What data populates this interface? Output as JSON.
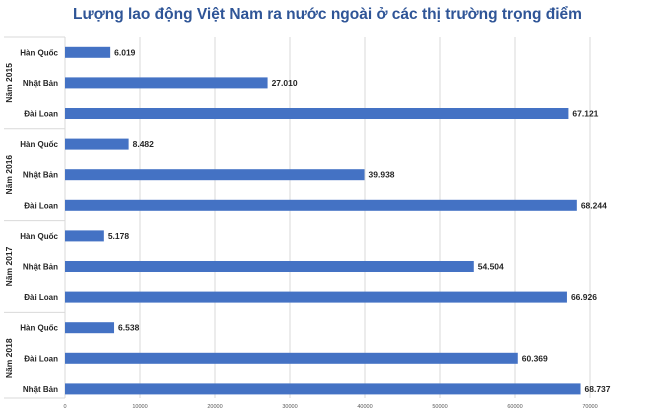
{
  "chart_data": {
    "type": "bar",
    "orientation": "horizontal",
    "title": "Lượng lao động Việt Nam ra nước ngoài ở các thị trường trọng điểm",
    "xlim": [
      0,
      70000
    ],
    "xticks": [
      "0",
      "10000",
      "20000",
      "30000",
      "40000",
      "50000",
      "60000",
      "70000"
    ],
    "grid": true,
    "bar_color": "#4472c4",
    "groups": [
      {
        "label": "Năm 2015",
        "items": [
          {
            "category": "Hàn Quốc",
            "value": 6019,
            "label": "6.019"
          },
          {
            "category": "Nhật Bản",
            "value": 27010,
            "label": "27.010"
          },
          {
            "category": "Đài Loan",
            "value": 67121,
            "label": "67.121"
          }
        ]
      },
      {
        "label": "Năm 2016",
        "items": [
          {
            "category": "Hàn Quốc",
            "value": 8482,
            "label": "8.482"
          },
          {
            "category": "Nhật Bản",
            "value": 39938,
            "label": "39.938"
          },
          {
            "category": "Đài Loan",
            "value": 68244,
            "label": "68.244"
          }
        ]
      },
      {
        "label": "Năm 2017",
        "items": [
          {
            "category": "Hàn Quốc",
            "value": 5178,
            "label": "5.178"
          },
          {
            "category": "Nhật Bản",
            "value": 54504,
            "label": "54.504"
          },
          {
            "category": "Đài Loan",
            "value": 66926,
            "label": "66.926"
          }
        ]
      },
      {
        "label": "Năm 2018",
        "items": [
          {
            "category": "Hàn Quốc",
            "value": 6538,
            "label": "6.538"
          },
          {
            "category": "Đài Loan",
            "value": 60369,
            "label": "60.369"
          },
          {
            "category": "Nhật Bản",
            "value": 68737,
            "label": "68.737"
          }
        ]
      }
    ]
  }
}
